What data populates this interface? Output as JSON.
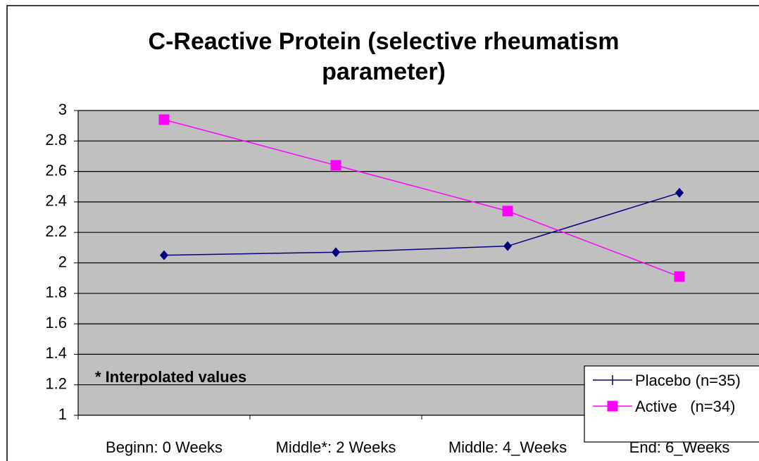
{
  "chart_data": {
    "type": "line",
    "title": "C-Reactive Protein (selective rheumatism parameter)",
    "annotation": "* Interpolated values",
    "categories": [
      "Beginn: 0 Weeks",
      "Middle*: 2 Weeks",
      "Middle: 4_Weeks",
      "End: 6_Weeks"
    ],
    "series": [
      {
        "name": "Placebo (n=35)",
        "color": "#000080",
        "marker": "diamond",
        "values": [
          2.05,
          2.07,
          2.11,
          2.46
        ]
      },
      {
        "name": "Active   (n=34)",
        "color": "#ff00ff",
        "marker": "square",
        "values": [
          2.94,
          2.64,
          2.34,
          1.91
        ]
      }
    ],
    "ylim": [
      1,
      3
    ],
    "yticks": [
      1,
      1.2,
      1.4,
      1.6,
      1.8,
      2,
      2.2,
      2.4,
      2.6,
      2.8,
      3
    ],
    "grid": true,
    "legend": "lower right",
    "plot_background": "#c0c0c0"
  }
}
